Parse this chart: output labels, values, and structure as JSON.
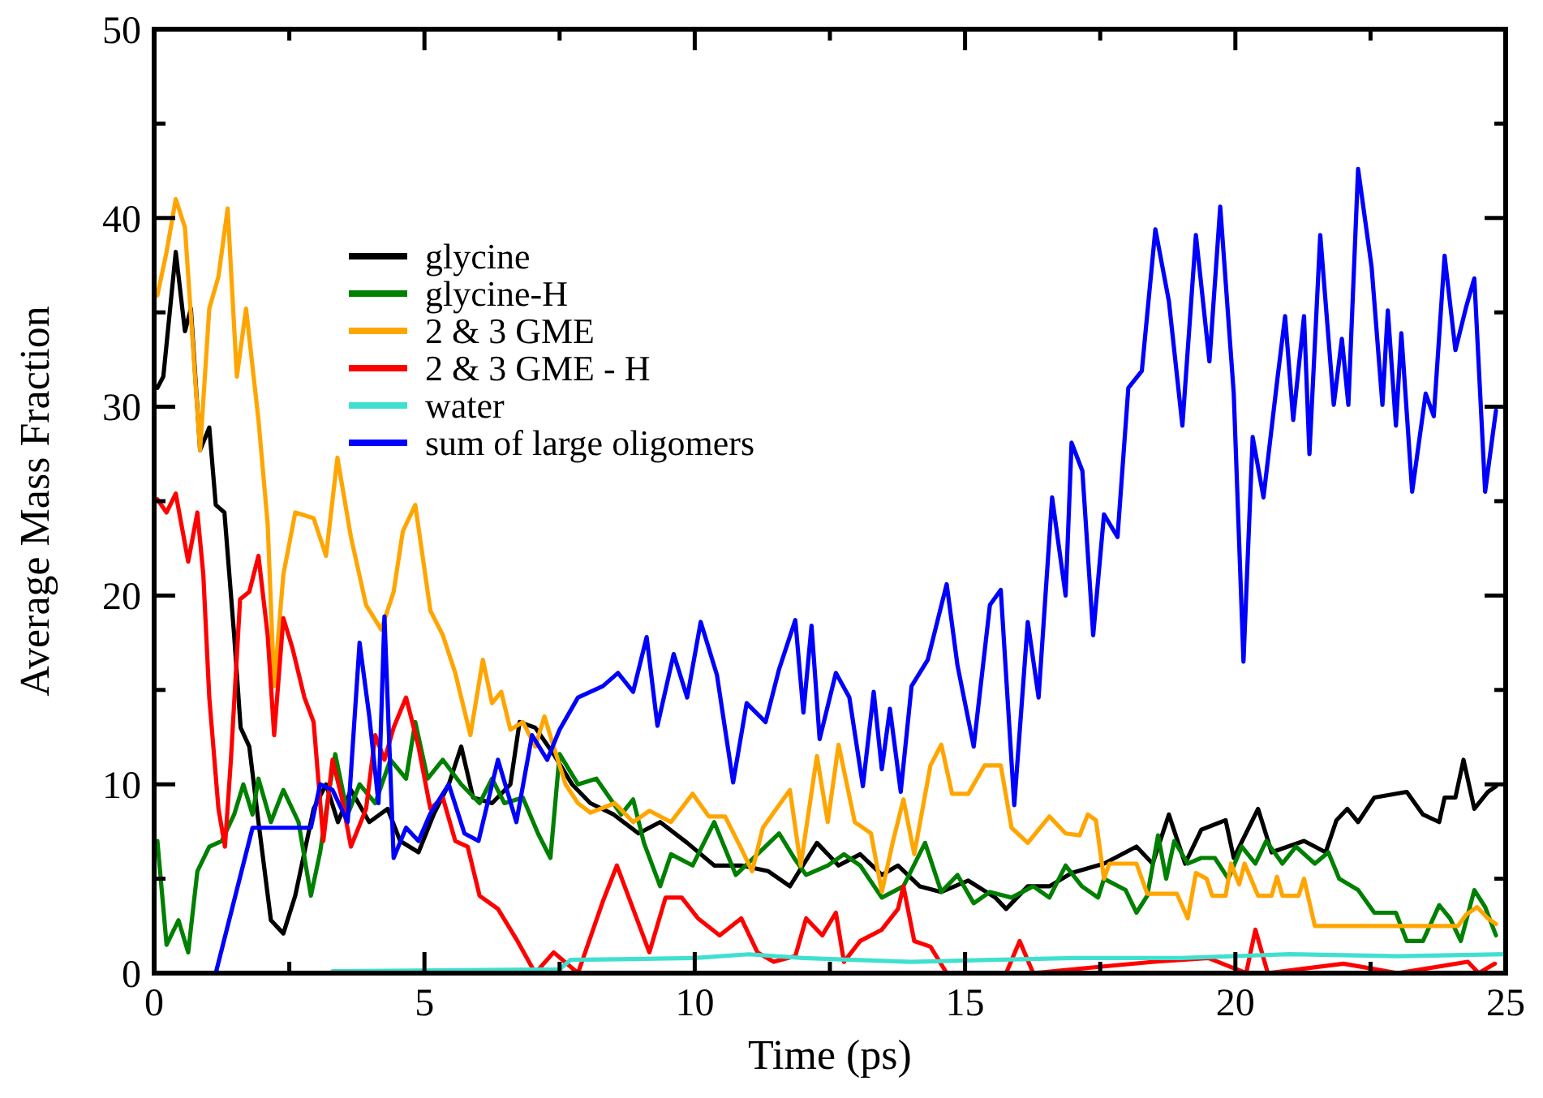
{
  "chart_data": {
    "type": "line",
    "xlabel": "Time (ps)",
    "ylabel": "Average Mass Fraction",
    "xlim": [
      0,
      25
    ],
    "ylim": [
      0,
      50
    ],
    "xticks": [
      0,
      {
        "value": 2.5,
        "label": null
      },
      5,
      {
        "value": 7.5,
        "label": null
      },
      10,
      {
        "value": 12.5,
        "label": null
      },
      15,
      {
        "value": 17.5,
        "label": null
      },
      20,
      {
        "value": 22.5,
        "label": null
      },
      25
    ],
    "yticks": [
      0,
      {
        "value": 5,
        "label": null
      },
      10,
      {
        "value": 15,
        "label": null
      },
      20,
      {
        "value": 25,
        "label": null
      },
      30,
      {
        "value": 35,
        "label": null
      },
      40,
      {
        "value": 45,
        "label": null
      },
      50
    ],
    "legend": "top left",
    "line_style": "solid",
    "marker": "none",
    "grid": false,
    "series": [
      {
        "name": "glycine",
        "color": "#000000",
        "x": [
          0.06,
          0.17,
          0.4,
          0.57,
          0.68,
          0.85,
          1.02,
          1.14,
          1.3,
          1.48,
          1.6,
          1.76,
          1.93,
          2.16,
          2.39,
          2.61,
          2.78,
          2.95,
          3.18,
          3.4,
          3.64,
          3.98,
          4.32,
          4.55,
          4.89,
          5.17,
          5.45,
          5.68,
          5.9,
          6.25,
          6.59,
          6.76,
          7.05,
          7.39,
          7.73,
          8.07,
          8.5,
          8.96,
          9.36,
          9.86,
          10.36,
          10.86,
          11.36,
          11.76,
          12.26,
          12.66,
          13.06,
          13.46,
          13.76,
          14.16,
          14.56,
          15.06,
          15.56,
          15.76,
          16.16,
          16.56,
          16.97,
          17.57,
          18.17,
          18.47,
          18.77,
          19.07,
          19.37,
          19.82,
          19.97,
          20.42,
          20.67,
          21.27,
          21.67,
          21.87,
          22.07,
          22.27,
          22.57,
          23.17,
          23.47,
          23.77,
          23.87,
          24.07,
          24.22,
          24.42,
          24.67,
          24.82
        ],
        "values": [
          31,
          31.6,
          38.2,
          34,
          35.2,
          27.7,
          28.9,
          24.8,
          24.4,
          17.9,
          13,
          12,
          8,
          2.8,
          2.1,
          4.1,
          6.4,
          8.7,
          10,
          8,
          9.7,
          8,
          8.7,
          7,
          6.4,
          8.4,
          10,
          12,
          9.3,
          9,
          10,
          13.3,
          13,
          11.6,
          10,
          9,
          8.4,
          7.4,
          8,
          6.9,
          5.7,
          5.7,
          5.4,
          4.6,
          6.9,
          5.7,
          6.3,
          5.2,
          5.7,
          4.6,
          4.3,
          4.9,
          4,
          3.4,
          4.6,
          4.6,
          5.3,
          5.8,
          6.7,
          5.8,
          8.4,
          5.8,
          7.6,
          8.1,
          6.1,
          8.7,
          6.4,
          7,
          6.4,
          8.1,
          8.7,
          8,
          9.3,
          9.6,
          8.4,
          8,
          9.3,
          9.3,
          11.3,
          8.7,
          9.6,
          9.9
        ]
      },
      {
        "name": "glycine-H",
        "color": "#008000",
        "x": [
          0.06,
          0.23,
          0.45,
          0.63,
          0.8,
          1.02,
          1.25,
          1.48,
          1.65,
          1.82,
          1.93,
          2.16,
          2.39,
          2.67,
          2.9,
          3.07,
          3.24,
          3.35,
          3.58,
          3.8,
          4.09,
          4.37,
          4.66,
          4.83,
          5.06,
          5.34,
          5.68,
          6.02,
          6.25,
          6.48,
          6.82,
          7.1,
          7.33,
          7.5,
          7.84,
          8.18,
          8.64,
          8.86,
          9.06,
          9.36,
          9.56,
          9.96,
          10.36,
          10.76,
          11.16,
          11.56,
          11.86,
          12.06,
          12.46,
          12.76,
          13.06,
          13.46,
          13.86,
          14.26,
          14.56,
          14.86,
          15.16,
          15.46,
          15.86,
          16.26,
          16.56,
          16.86,
          17.16,
          17.46,
          17.57,
          17.97,
          18.17,
          18.37,
          18.57,
          18.72,
          18.87,
          19.12,
          19.37,
          19.62,
          19.87,
          20.12,
          20.37,
          20.57,
          20.87,
          21.12,
          21.47,
          21.72,
          21.92,
          22.27,
          22.57,
          22.97,
          23.17,
          23.47,
          23.77,
          23.97,
          24.17,
          24.42,
          24.62,
          24.82
        ],
        "values": [
          7,
          1.5,
          2.8,
          1.1,
          5.4,
          6.7,
          7,
          8.4,
          10,
          8.4,
          10.3,
          8,
          9.7,
          8,
          4.1,
          6.4,
          9.7,
          11.6,
          8.4,
          10,
          9,
          11.3,
          10.3,
          13.3,
          10.3,
          11.3,
          10,
          9,
          10.3,
          9,
          9.3,
          7.4,
          6.1,
          11.6,
          10,
          10.3,
          8.4,
          9.2,
          6.9,
          4.6,
          6.3,
          5.7,
          8,
          5.2,
          6.3,
          7.4,
          6,
          5.2,
          5.7,
          6.3,
          5.7,
          4,
          4.6,
          6.9,
          4.3,
          5.2,
          3.7,
          4.3,
          4,
          4.6,
          4,
          5.7,
          4.6,
          4,
          5,
          4.4,
          3.2,
          4.1,
          7.3,
          5,
          7,
          5.8,
          6.1,
          6.1,
          5,
          6.7,
          5.8,
          7,
          5.8,
          6.7,
          5.8,
          6.4,
          5,
          4.4,
          3.2,
          3.2,
          1.7,
          1.7,
          3.6,
          2.9,
          1.7,
          4.4,
          3.5,
          2
        ]
      },
      {
        "name": "2 & 3 GME",
        "color": "#ffa500",
        "x": [
          0.06,
          0.23,
          0.4,
          0.57,
          0.74,
          0.85,
          1.02,
          1.19,
          1.36,
          1.53,
          1.7,
          1.93,
          2.1,
          2.22,
          2.39,
          2.61,
          2.95,
          3.18,
          3.39,
          3.64,
          3.92,
          4.2,
          4.43,
          4.6,
          4.83,
          5.11,
          5.34,
          5.57,
          5.85,
          6.08,
          6.25,
          6.42,
          6.59,
          6.82,
          7.05,
          7.22,
          7.39,
          7.61,
          7.84,
          8.07,
          8.52,
          8.86,
          9.16,
          9.56,
          9.96,
          10.26,
          10.56,
          10.86,
          11.06,
          11.26,
          11.56,
          11.76,
          11.96,
          12.26,
          12.46,
          12.66,
          12.96,
          13.26,
          13.46,
          13.66,
          13.86,
          14.06,
          14.36,
          14.56,
          14.76,
          15.06,
          15.36,
          15.66,
          15.86,
          16.16,
          16.56,
          16.86,
          17.12,
          17.27,
          17.42,
          17.57,
          17.67,
          18.17,
          18.37,
          18.92,
          19.12,
          19.27,
          19.47,
          19.57,
          19.82,
          19.92,
          20.07,
          20.17,
          20.42,
          20.67,
          20.77,
          20.87,
          21.17,
          21.27,
          21.47,
          24.12,
          24.27,
          24.47,
          24.67,
          24.82
        ],
        "values": [
          35.9,
          38.2,
          41,
          39.5,
          32.3,
          27.7,
          35.2,
          36.9,
          40.5,
          31.6,
          35.2,
          29.3,
          23.8,
          15.2,
          21.1,
          24.4,
          24.1,
          22.1,
          27.3,
          23.1,
          19.5,
          18.2,
          20.2,
          23.4,
          24.8,
          19.2,
          17.9,
          15.9,
          12.6,
          16.6,
          14.3,
          14.9,
          12.9,
          13.3,
          12,
          13.6,
          12,
          10,
          9,
          8.5,
          9,
          8,
          8.6,
          8,
          9.5,
          8.3,
          8.3,
          6.6,
          5.4,
          7.7,
          8.9,
          9.7,
          5.7,
          11.5,
          8,
          12.1,
          8,
          7.4,
          4.3,
          6.9,
          9.2,
          6.3,
          11,
          12.1,
          9.5,
          9.5,
          11,
          11,
          7.7,
          6.9,
          8.3,
          7.4,
          7.3,
          8.4,
          8.1,
          5,
          5.8,
          5.8,
          4.2,
          4.2,
          2.9,
          5.3,
          5,
          4.1,
          4.1,
          5.8,
          4.7,
          5.8,
          4.1,
          4.1,
          5.1,
          4.1,
          4.1,
          5,
          2.5,
          2.5,
          3.1,
          3.5,
          2.9,
          2.6
        ]
      },
      {
        "name": "2 & 3 GME - H",
        "color": "#ff0000",
        "x": [
          0.06,
          0.23,
          0.4,
          0.63,
          0.8,
          0.91,
          1.02,
          1.19,
          1.31,
          1.42,
          1.59,
          1.76,
          1.93,
          2.1,
          2.22,
          2.39,
          2.56,
          2.78,
          2.95,
          3.13,
          3.3,
          3.47,
          3.64,
          3.92,
          4.09,
          4.26,
          4.43,
          4.66,
          4.89,
          5.11,
          5.34,
          5.57,
          5.8,
          6.02,
          6.36,
          6.7,
          7.05,
          7.39,
          7.84,
          8.3,
          8.56,
          8.86,
          9.16,
          9.46,
          9.76,
          10.06,
          10.46,
          10.86,
          11.16,
          11.46,
          11.86,
          12.06,
          12.36,
          12.61,
          12.76,
          13.06,
          13.46,
          13.76,
          13.86,
          14.06,
          14.36,
          14.66,
          15.76,
          16.01,
          16.26,
          17.36,
          18.5,
          19.5,
          20.2,
          20.37,
          20.6,
          22,
          23,
          24.3,
          24.5,
          24.8
        ],
        "values": [
          25.1,
          24.4,
          25.4,
          21.8,
          24.4,
          21.1,
          14.6,
          8.7,
          6.7,
          11.3,
          19.8,
          20.2,
          22.1,
          17.9,
          12.6,
          18.8,
          17.2,
          14.6,
          13.3,
          7,
          11.3,
          9.3,
          6.7,
          8.7,
          12.6,
          11.3,
          13,
          14.6,
          12,
          8.7,
          9.3,
          7,
          6.7,
          4.1,
          3.4,
          1.8,
          0,
          1.1,
          0,
          3.8,
          5.7,
          3.4,
          1.1,
          4,
          4,
          2.9,
          2,
          2.9,
          1.1,
          0.6,
          0.9,
          2.9,
          2,
          3.2,
          0.6,
          1.7,
          2.3,
          3.4,
          4.6,
          1.7,
          1.4,
          0,
          0,
          1.7,
          0,
          0.3,
          0.6,
          0.8,
          0,
          2.3,
          0,
          0.5,
          0,
          0.6,
          0,
          0.5
        ]
      },
      {
        "name": "water",
        "color": "#40e0d0",
        "x": [
          3.3,
          7.5,
          7.7,
          10,
          11,
          12,
          14,
          15.5,
          17,
          19,
          21,
          23,
          25
        ],
        "values": [
          0.1,
          0.2,
          0.7,
          0.8,
          1,
          0.8,
          0.6,
          0.7,
          0.8,
          0.8,
          1,
          0.9,
          1
        ]
      },
      {
        "name": "sum of large oligomers",
        "color": "#0000ff",
        "x": [
          1.14,
          1.82,
          2.9,
          3.07,
          3.3,
          3.58,
          3.8,
          3.98,
          4.15,
          4.26,
          4.43,
          4.66,
          4.89,
          5.1,
          5.45,
          5.74,
          6.0,
          6.36,
          6.7,
          6.99,
          7.27,
          7.5,
          7.84,
          8.3,
          8.58,
          8.86,
          9.11,
          9.31,
          9.61,
          9.86,
          10.11,
          10.41,
          10.71,
          10.96,
          11.31,
          11.56,
          11.86,
          12.01,
          12.16,
          12.31,
          12.61,
          12.86,
          13.11,
          13.31,
          13.46,
          13.61,
          13.81,
          14.01,
          14.31,
          14.66,
          14.86,
          15.16,
          15.46,
          15.66,
          15.91,
          16.16,
          16.36,
          16.61,
          16.86,
          16.97,
          17.17,
          17.37,
          17.57,
          17.82,
          18.02,
          18.27,
          18.52,
          18.77,
          19.02,
          19.27,
          19.52,
          19.72,
          19.97,
          20.15,
          20.32,
          20.52,
          20.77,
          20.92,
          21.07,
          21.27,
          21.37,
          21.57,
          21.82,
          21.97,
          22.09,
          22.27,
          22.52,
          22.72,
          22.82,
          22.97,
          23.07,
          23.27,
          23.52,
          23.67,
          23.87,
          24.07,
          24.27,
          24.42,
          24.62,
          24.82
        ],
        "values": [
          0,
          7.7,
          7.7,
          10,
          9.7,
          8,
          17.5,
          13.6,
          9,
          18.9,
          6.1,
          7.7,
          7,
          8.4,
          10,
          7.4,
          7,
          11.3,
          8,
          12.6,
          11.3,
          12.9,
          14.6,
          15.2,
          15.9,
          14.9,
          17.8,
          13.1,
          16.9,
          14.6,
          18.6,
          15.8,
          10.1,
          14.3,
          13.3,
          16.1,
          18.7,
          13.8,
          18.4,
          12.4,
          15.9,
          14.6,
          9.9,
          14.9,
          10.8,
          14,
          9.6,
          15.2,
          16.6,
          20.6,
          16.3,
          12,
          19.5,
          20.3,
          8.9,
          18.6,
          14.6,
          25.2,
          20,
          28.1,
          26.6,
          17.9,
          24.3,
          23.1,
          31,
          31.9,
          39.4,
          35.6,
          29,
          39.1,
          32.4,
          40.6,
          30.7,
          16.5,
          28.4,
          25.2,
          31.3,
          34.8,
          29.3,
          34.8,
          27.5,
          39.1,
          30.1,
          33.6,
          30.1,
          42.6,
          37.4,
          30.1,
          35.1,
          29,
          33.9,
          25.5,
          30.7,
          29.5,
          38,
          33,
          35.3,
          36.8,
          25.5,
          29.8
        ]
      }
    ]
  }
}
